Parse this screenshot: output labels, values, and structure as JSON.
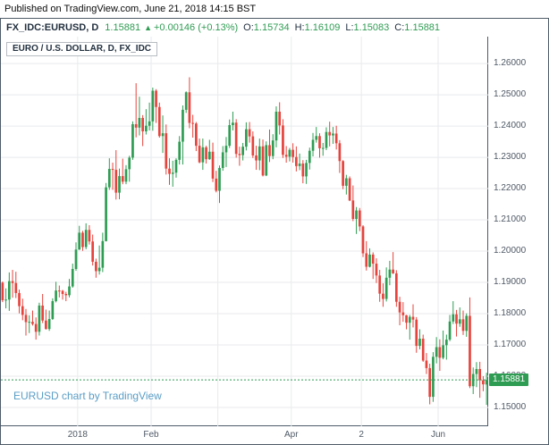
{
  "published_caption": "Published on TradingView.com, June 21, 2018 14:15 BST",
  "header": {
    "symbol": "FX_IDC:EURUSD, D",
    "last_price": "1.15881",
    "change_arrow": "▲",
    "change": "+0.00146 (+0.13%)",
    "ohlc": [
      {
        "label": "O:",
        "value": "1.15734"
      },
      {
        "label": "H:",
        "value": "1.16109"
      },
      {
        "label": "L:",
        "value": "1.15083"
      },
      {
        "label": "C:",
        "value": "1.15881"
      }
    ]
  },
  "legend": "EURO / U.S. DOLLAR, D, FX_IDC",
  "attribution": "EURUSD chart by TradingView",
  "colors": {
    "up": "#2f9c53",
    "down": "#e5443d",
    "grid": "#e8eaec",
    "border": "#4e5b68",
    "axis_text": "#4f5966",
    "header_text": "#22303f",
    "attribution": "#5a9ec6",
    "badge_bg": "#2f9c53",
    "badge_text": "#ffffff"
  },
  "price_axis": {
    "labels": [
      "1.26000",
      "1.25000",
      "1.24000",
      "1.23000",
      "1.22000",
      "1.21000",
      "1.20000",
      "1.19000",
      "1.18000",
      "1.17000",
      "1.16000",
      "1.15000"
    ],
    "last_price_label": "1.15881"
  },
  "time_axis": {
    "ticks": [
      {
        "label": "2018",
        "index": 23
      },
      {
        "label": "Feb",
        "index": 45
      },
      {
        "label": "Apr",
        "index": 87
      },
      {
        "label": "2",
        "index": 108
      },
      {
        "label": "Jun",
        "index": 131
      }
    ],
    "gridline_indices": [
      23,
      45,
      65,
      87,
      108,
      131
    ]
  },
  "chart_data": {
    "type": "candlestick",
    "title": "EURO / U.S. DOLLAR, D, FX_IDC",
    "symbol": "EURUSD",
    "interval": "D",
    "ylim": [
      1.144,
      1.2686
    ],
    "grid": true,
    "last_price": 1.15881,
    "candles": [
      [
        1.1899,
        1.1903,
        1.1837,
        1.1843
      ],
      [
        1.1843,
        1.1881,
        1.1817,
        1.1845
      ],
      [
        1.1845,
        1.1932,
        1.1809,
        1.1904
      ],
      [
        1.1904,
        1.194,
        1.1851,
        1.1898
      ],
      [
        1.1898,
        1.1934,
        1.185,
        1.1866
      ],
      [
        1.1866,
        1.1877,
        1.1801,
        1.1824
      ],
      [
        1.1824,
        1.1848,
        1.1779,
        1.1796
      ],
      [
        1.1796,
        1.1815,
        1.173,
        1.1773
      ],
      [
        1.1773,
        1.1795,
        1.1738,
        1.1774
      ],
      [
        1.1774,
        1.181,
        1.1762,
        1.1767
      ],
      [
        1.1767,
        1.1788,
        1.1717,
        1.1742
      ],
      [
        1.1742,
        1.1835,
        1.173,
        1.1826
      ],
      [
        1.1826,
        1.1863,
        1.177,
        1.1778
      ],
      [
        1.1778,
        1.1813,
        1.1749,
        1.1751
      ],
      [
        1.1751,
        1.181,
        1.1745,
        1.1783
      ],
      [
        1.1783,
        1.1849,
        1.178,
        1.184
      ],
      [
        1.184,
        1.1902,
        1.1836,
        1.1874
      ],
      [
        1.1874,
        1.189,
        1.1852,
        1.1873
      ],
      [
        1.1873,
        1.1876,
        1.1845,
        1.1863
      ],
      [
        1.1863,
        1.187,
        1.184,
        1.1859
      ],
      [
        1.1859,
        1.1911,
        1.1852,
        1.1887
      ],
      [
        1.1887,
        1.196,
        1.1883,
        1.1943
      ],
      [
        1.1943,
        1.2028,
        1.1937,
        1.2005
      ],
      [
        1.2005,
        1.2081,
        1.2004,
        1.2059
      ],
      [
        1.2059,
        1.2065,
        1.2001,
        1.2013
      ],
      [
        1.2013,
        1.2089,
        1.2006,
        1.2068
      ],
      [
        1.2068,
        1.2083,
        1.2021,
        1.2031
      ],
      [
        1.2031,
        1.2053,
        1.1954,
        1.1966
      ],
      [
        1.1966,
        1.1976,
        1.1915,
        1.1936
      ],
      [
        1.1936,
        1.2018,
        1.1925,
        1.1947
      ],
      [
        1.1947,
        1.2059,
        1.1933,
        1.2032
      ],
      [
        1.2032,
        1.2218,
        1.2031,
        1.2204
      ],
      [
        1.2204,
        1.2297,
        1.2196,
        1.2263
      ],
      [
        1.2263,
        1.2283,
        1.2196,
        1.226
      ],
      [
        1.226,
        1.2323,
        1.2165,
        1.2187
      ],
      [
        1.2187,
        1.2264,
        1.2166,
        1.224
      ],
      [
        1.224,
        1.2296,
        1.2214,
        1.2222
      ],
      [
        1.2222,
        1.2275,
        1.2214,
        1.2262
      ],
      [
        1.2262,
        1.2305,
        1.2222,
        1.2299
      ],
      [
        1.2299,
        1.2415,
        1.2292,
        1.2406
      ],
      [
        1.2406,
        1.2537,
        1.2364,
        1.2395
      ],
      [
        1.2395,
        1.2494,
        1.237,
        1.2426
      ],
      [
        1.2426,
        1.2435,
        1.2336,
        1.2383
      ],
      [
        1.2383,
        1.2454,
        1.2373,
        1.2401
      ],
      [
        1.2401,
        1.2475,
        1.2386,
        1.2415
      ],
      [
        1.2415,
        1.2523,
        1.2385,
        1.2513
      ],
      [
        1.2513,
        1.2518,
        1.241,
        1.2461
      ],
      [
        1.2461,
        1.2475,
        1.2363,
        1.2368
      ],
      [
        1.2368,
        1.2434,
        1.2314,
        1.2377
      ],
      [
        1.2377,
        1.2405,
        1.2245,
        1.2264
      ],
      [
        1.2264,
        1.2297,
        1.2212,
        1.2247
      ],
      [
        1.2247,
        1.2289,
        1.2206,
        1.2251
      ],
      [
        1.2251,
        1.2297,
        1.2235,
        1.2292
      ],
      [
        1.2292,
        1.2368,
        1.2277,
        1.235
      ],
      [
        1.235,
        1.2466,
        1.2277,
        1.2452
      ],
      [
        1.2452,
        1.2511,
        1.2442,
        1.2508
      ],
      [
        1.2508,
        1.2556,
        1.2393,
        1.241
      ],
      [
        1.241,
        1.2436,
        1.2363,
        1.2408
      ],
      [
        1.2408,
        1.2413,
        1.232,
        1.2337
      ],
      [
        1.2337,
        1.236,
        1.2281,
        1.2284
      ],
      [
        1.2284,
        1.236,
        1.226,
        1.2332
      ],
      [
        1.2332,
        1.2337,
        1.228,
        1.2294
      ],
      [
        1.2294,
        1.2356,
        1.2292,
        1.2318
      ],
      [
        1.2318,
        1.2347,
        1.2221,
        1.2232
      ],
      [
        1.2232,
        1.2257,
        1.2188,
        1.2193
      ],
      [
        1.2193,
        1.2274,
        1.2154,
        1.2266
      ],
      [
        1.2266,
        1.2336,
        1.2257,
        1.2316
      ],
      [
        1.2316,
        1.2365,
        1.2269,
        1.2337
      ],
      [
        1.2337,
        1.2421,
        1.233,
        1.2403
      ],
      [
        1.2403,
        1.2446,
        1.2386,
        1.2411
      ],
      [
        1.2411,
        1.2422,
        1.2299,
        1.2311
      ],
      [
        1.2311,
        1.2334,
        1.2273,
        1.2307
      ],
      [
        1.2307,
        1.2346,
        1.229,
        1.2334
      ],
      [
        1.2334,
        1.2412,
        1.2322,
        1.239
      ],
      [
        1.239,
        1.2413,
        1.2347,
        1.2367
      ],
      [
        1.2367,
        1.2383,
        1.2298,
        1.2306
      ],
      [
        1.2306,
        1.2337,
        1.226,
        1.229
      ],
      [
        1.229,
        1.236,
        1.2259,
        1.2335
      ],
      [
        1.2335,
        1.2357,
        1.2239,
        1.2242
      ],
      [
        1.2242,
        1.2351,
        1.224,
        1.2339
      ],
      [
        1.2339,
        1.2389,
        1.2285,
        1.2304
      ],
      [
        1.2304,
        1.2374,
        1.2294,
        1.2354
      ],
      [
        1.2354,
        1.2463,
        1.2332,
        1.2446
      ],
      [
        1.2446,
        1.2476,
        1.2373,
        1.2402
      ],
      [
        1.2402,
        1.2422,
        1.2298,
        1.2308
      ],
      [
        1.2308,
        1.2336,
        1.2283,
        1.2302
      ],
      [
        1.2302,
        1.233,
        1.2287,
        1.2324
      ],
      [
        1.2324,
        1.2345,
        1.2283,
        1.2301
      ],
      [
        1.2301,
        1.2335,
        1.2255,
        1.2272
      ],
      [
        1.2272,
        1.2312,
        1.2259,
        1.228
      ],
      [
        1.228,
        1.2291,
        1.2217,
        1.2239
      ],
      [
        1.2239,
        1.2292,
        1.2215,
        1.2282
      ],
      [
        1.2282,
        1.2331,
        1.2261,
        1.2321
      ],
      [
        1.2321,
        1.2378,
        1.2303,
        1.2356
      ],
      [
        1.2356,
        1.2397,
        1.2347,
        1.2368
      ],
      [
        1.2368,
        1.2377,
        1.2299,
        1.2329
      ],
      [
        1.2329,
        1.2346,
        1.2305,
        1.233
      ],
      [
        1.233,
        1.2396,
        1.2323,
        1.2381
      ],
      [
        1.2381,
        1.2414,
        1.2335,
        1.237
      ],
      [
        1.237,
        1.2397,
        1.2343,
        1.2376
      ],
      [
        1.2376,
        1.2401,
        1.2325,
        1.2345
      ],
      [
        1.2345,
        1.2355,
        1.225,
        1.2288
      ],
      [
        1.2288,
        1.2291,
        1.2198,
        1.2209
      ],
      [
        1.2209,
        1.2244,
        1.2181,
        1.2233
      ],
      [
        1.2233,
        1.2239,
        1.216,
        1.2162
      ],
      [
        1.2162,
        1.221,
        1.2096,
        1.2103
      ],
      [
        1.2103,
        1.2141,
        1.2055,
        1.213
      ],
      [
        1.213,
        1.2138,
        1.2064,
        1.2079
      ],
      [
        1.2079,
        1.2083,
        1.1981,
        1.1993
      ],
      [
        1.1993,
        1.2032,
        1.1938,
        1.195
      ],
      [
        1.195,
        1.2009,
        1.1948,
        1.1989
      ],
      [
        1.1989,
        1.1996,
        1.1911,
        1.196
      ],
      [
        1.196,
        1.1977,
        1.1898,
        1.1922
      ],
      [
        1.1922,
        1.194,
        1.1838,
        1.1864
      ],
      [
        1.1864,
        1.1897,
        1.1822,
        1.1847
      ],
      [
        1.1847,
        1.1948,
        1.1839,
        1.1915
      ],
      [
        1.1915,
        1.1969,
        1.1891,
        1.1941
      ],
      [
        1.1941,
        1.1997,
        1.1927,
        1.1929
      ],
      [
        1.1929,
        1.1939,
        1.1822,
        1.1838
      ],
      [
        1.1838,
        1.1854,
        1.1763,
        1.1804
      ],
      [
        1.1804,
        1.1837,
        1.1774,
        1.1795
      ],
      [
        1.1795,
        1.1796,
        1.175,
        1.1771
      ],
      [
        1.1771,
        1.1796,
        1.1717,
        1.179
      ],
      [
        1.179,
        1.183,
        1.1756,
        1.1781
      ],
      [
        1.1781,
        1.1789,
        1.1675,
        1.1697
      ],
      [
        1.1697,
        1.175,
        1.1686,
        1.172
      ],
      [
        1.172,
        1.1733,
        1.1646,
        1.165
      ],
      [
        1.165,
        1.1674,
        1.1607,
        1.1626
      ],
      [
        1.1626,
        1.164,
        1.151,
        1.1534
      ],
      [
        1.1534,
        1.1677,
        1.1518,
        1.1662
      ],
      [
        1.1662,
        1.1725,
        1.1641,
        1.1693
      ],
      [
        1.1693,
        1.1718,
        1.1617,
        1.1659
      ],
      [
        1.1659,
        1.1746,
        1.1654,
        1.1699
      ],
      [
        1.1699,
        1.1733,
        1.1653,
        1.1717
      ],
      [
        1.1717,
        1.1796,
        1.1712,
        1.1775
      ],
      [
        1.1775,
        1.184,
        1.1767,
        1.1798
      ],
      [
        1.1798,
        1.1812,
        1.1727,
        1.1768
      ],
      [
        1.1768,
        1.182,
        1.1758,
        1.1782
      ],
      [
        1.1782,
        1.181,
        1.1732,
        1.1745
      ],
      [
        1.1745,
        1.1801,
        1.1726,
        1.1793
      ],
      [
        1.1793,
        1.1852,
        1.1562,
        1.1568
      ],
      [
        1.1568,
        1.1628,
        1.1543,
        1.1607
      ],
      [
        1.1607,
        1.1645,
        1.1565,
        1.1623
      ],
      [
        1.1623,
        1.1646,
        1.1531,
        1.1587
      ],
      [
        1.1587,
        1.16,
        1.1552,
        1.1574
      ],
      [
        1.15734,
        1.16109,
        1.15083,
        1.15881
      ]
    ]
  }
}
